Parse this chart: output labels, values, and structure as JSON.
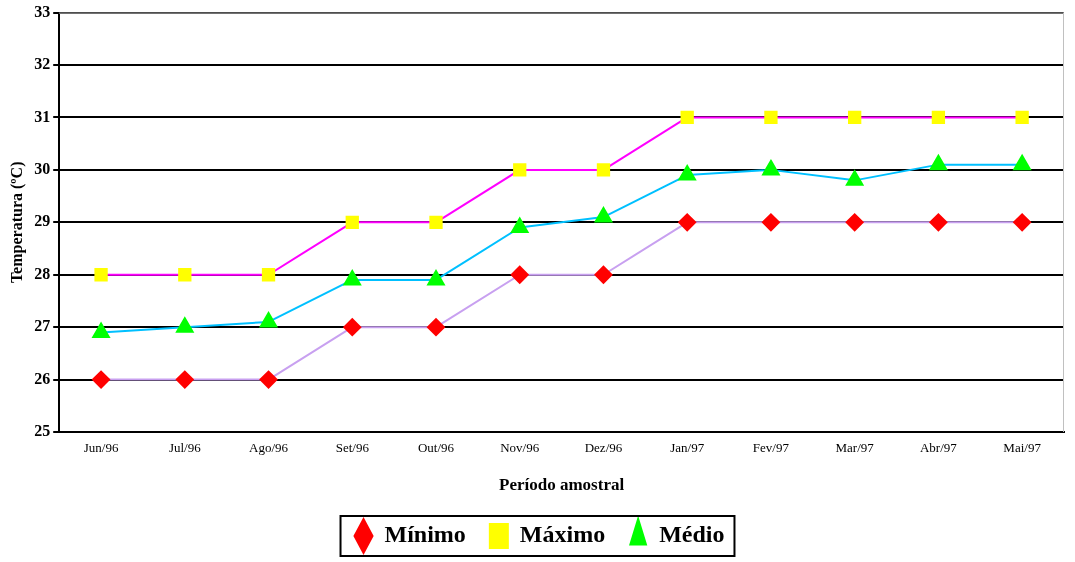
{
  "chart_data": {
    "type": "line",
    "xlabel": "Período amostral",
    "ylabel": "Temperatura (ºC)",
    "categories": [
      "Jun/96",
      "Jul/96",
      "Ago/96",
      "Set/96",
      "Out/96",
      "Nov/96",
      "Dez/96",
      "Jan/97",
      "Fev/97",
      "Mar/97",
      "Abr/97",
      "Mai/97"
    ],
    "series": [
      {
        "name": "Mínimo",
        "color": "#c8a0f0",
        "colors": [
          "#ff0000",
          "#ff0000",
          "#ff0000",
          "#ff0000",
          "#ff0000",
          "#ff0000",
          "#ff0000",
          "#ff0000",
          "#ff0000",
          "#ff0000",
          "#ff0000",
          "#ff0000"
        ],
        "marker": "diamond",
        "values": [
          26,
          26,
          26,
          27,
          27,
          28,
          28,
          29,
          29,
          29,
          29,
          29
        ]
      },
      {
        "name": "Máximo",
        "color": "#ff00ff",
        "colors": [
          "#ffff00",
          "#ffff00",
          "#ffff00",
          "#ffff00",
          "#ffff00",
          "#ffff00",
          "#ffff00",
          "#ffff00",
          "#ffff00",
          "#ffff00",
          "#ffff00",
          "#ffff00"
        ],
        "marker": "square",
        "values": [
          28,
          28,
          28,
          29,
          29,
          30,
          30,
          31,
          31,
          31,
          31,
          31
        ]
      },
      {
        "name": "Médio",
        "color": "#00c0ff",
        "colors": [
          "#00ff00",
          "#00ff00",
          "#00ff00",
          "#00ff00",
          "#00ff00",
          "#00ff00",
          "#00ff00",
          "#00ff00",
          "#00ff00",
          "#00ff00",
          "#00ff00",
          "#00ff00"
        ],
        "marker": "triangle",
        "values": [
          26.9,
          27.0,
          27.1,
          27.9,
          27.9,
          28.9,
          29.1,
          29.9,
          30.0,
          29.8,
          30.1,
          30.1
        ]
      }
    ],
    "ylim": [
      25,
      33
    ],
    "yticks": [
      25,
      26,
      27,
      28,
      29,
      30,
      31,
      32,
      33
    ],
    "grid": "y",
    "legend": "bottom",
    "line_style": "solid"
  }
}
